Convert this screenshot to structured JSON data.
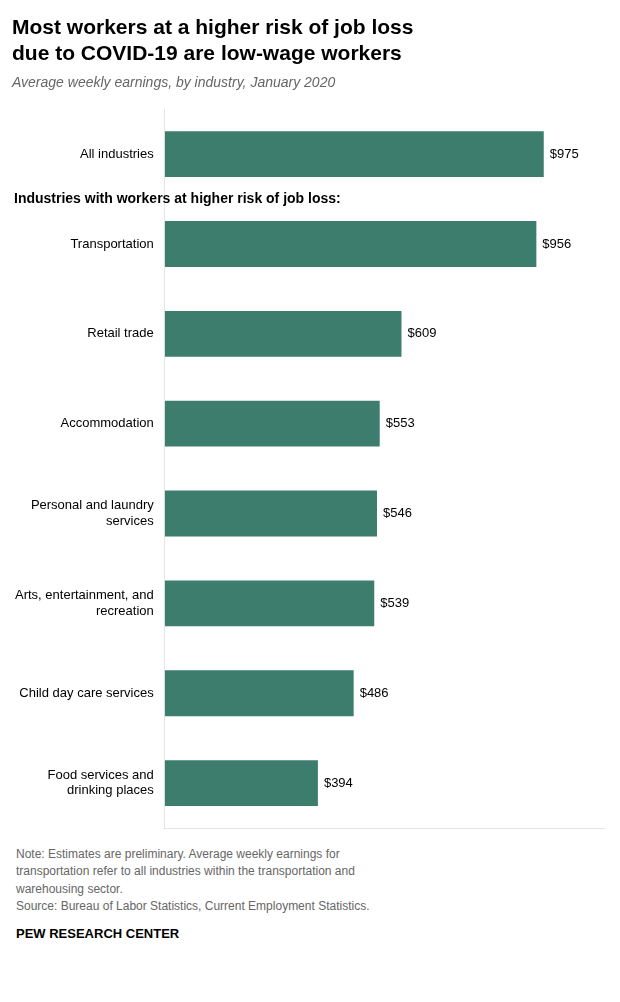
{
  "chart_data": {
    "type": "bar",
    "orientation": "horizontal",
    "title": "Most workers at a higher risk of job loss\ndue to COVID-19 are low-wage workers",
    "subtitle": "Average weekly earnings, by industry, January 2020",
    "annotations": [
      "Industries with workers at higher risk of job loss:"
    ],
    "categories": [
      "All industries",
      "Transportation",
      "Retail trade",
      "Accommodation",
      "Personal and laundry\nservices",
      "Arts, entertainment, and\nrecreation",
      "Child day care services",
      "Food services and\ndrinking places"
    ],
    "values": [
      975,
      956,
      609,
      553,
      546,
      539,
      486,
      394
    ],
    "value_labels": [
      "$975",
      "$956",
      "$609",
      "$553",
      "$546",
      "$539",
      "$486",
      "$394"
    ],
    "data_labels": true,
    "color": "#3d7d6e",
    "xlim": [
      0,
      1130
    ],
    "tick_labels": "y",
    "grid": false,
    "notes": [
      "Note: Estimates are preliminary. Average weekly earnings for",
      "transportation refer to all industries within the transportation and",
      "warehousing sector.",
      "Source: Bureau of Labor Statistics, Current Employment Statistics."
    ],
    "source": "PEW RESEARCH CENTER"
  }
}
